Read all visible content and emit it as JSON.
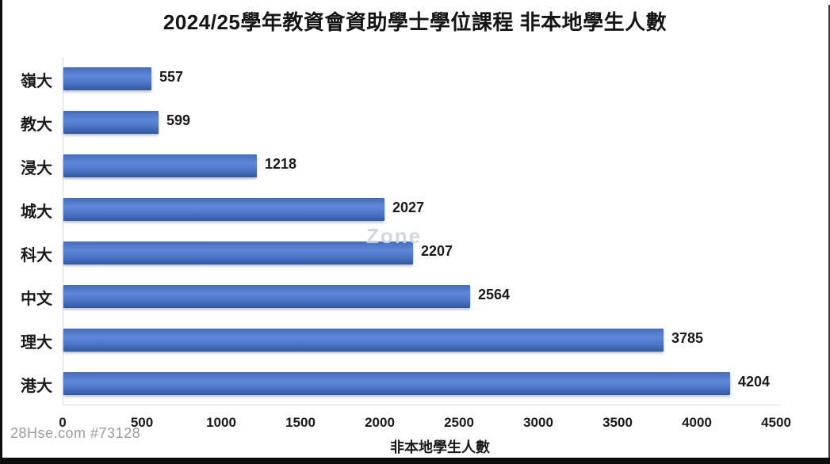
{
  "title": "2024/25學年教資會資助學士學位課程 非本地學生人數",
  "watermarks": {
    "bottom_left": "28Hse.com #73128",
    "overlay": "Zone"
  },
  "chart_data": {
    "type": "bar",
    "orientation": "horizontal",
    "title": "2024/25學年教資會資助學士學位課程 非本地學生人數",
    "categories": [
      "嶺大",
      "教大",
      "浸大",
      "城大",
      "科大",
      "中文",
      "理大",
      "港大"
    ],
    "values": [
      557,
      599,
      1218,
      2027,
      2207,
      2564,
      3785,
      4204
    ],
    "xlabel": "非本地學生人數",
    "ylabel": "",
    "xlim": [
      0,
      4500
    ],
    "xticks": [
      0,
      500,
      1000,
      1500,
      2000,
      2500,
      3000,
      3500,
      4000,
      4500
    ],
    "grid": false,
    "legend": false,
    "value_labels": true,
    "bar_color": "#4472C4",
    "bar_gradient_top": "#466CB8",
    "bar_gradient_mid": "#5E89DA",
    "bar_gradient_bottom": "#32579E",
    "axis_line_color": "#D9D9D9",
    "text_color": "#1A1A1A",
    "background_color": "#FFFFFF"
  }
}
